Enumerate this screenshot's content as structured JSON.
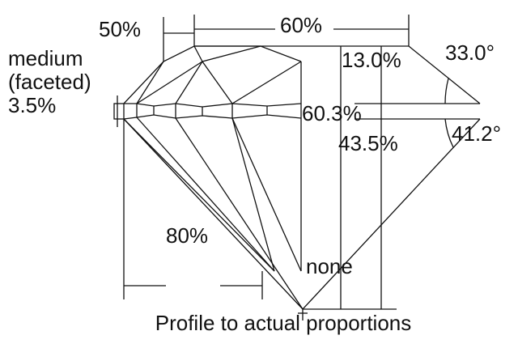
{
  "labels": {
    "table": "50%",
    "width": "60%",
    "girdle_1": "medium",
    "girdle_2": "(faceted)",
    "girdle_3": "3.5%",
    "crown_height": "13.0%",
    "crown_angle": "33.0°",
    "total_depth": "60.3%",
    "pavilion_depth": "43.5%",
    "pavilion_angle": "41.2°",
    "lower_half": "80%",
    "culet": "none"
  },
  "caption": "Profile to actual proportions"
}
